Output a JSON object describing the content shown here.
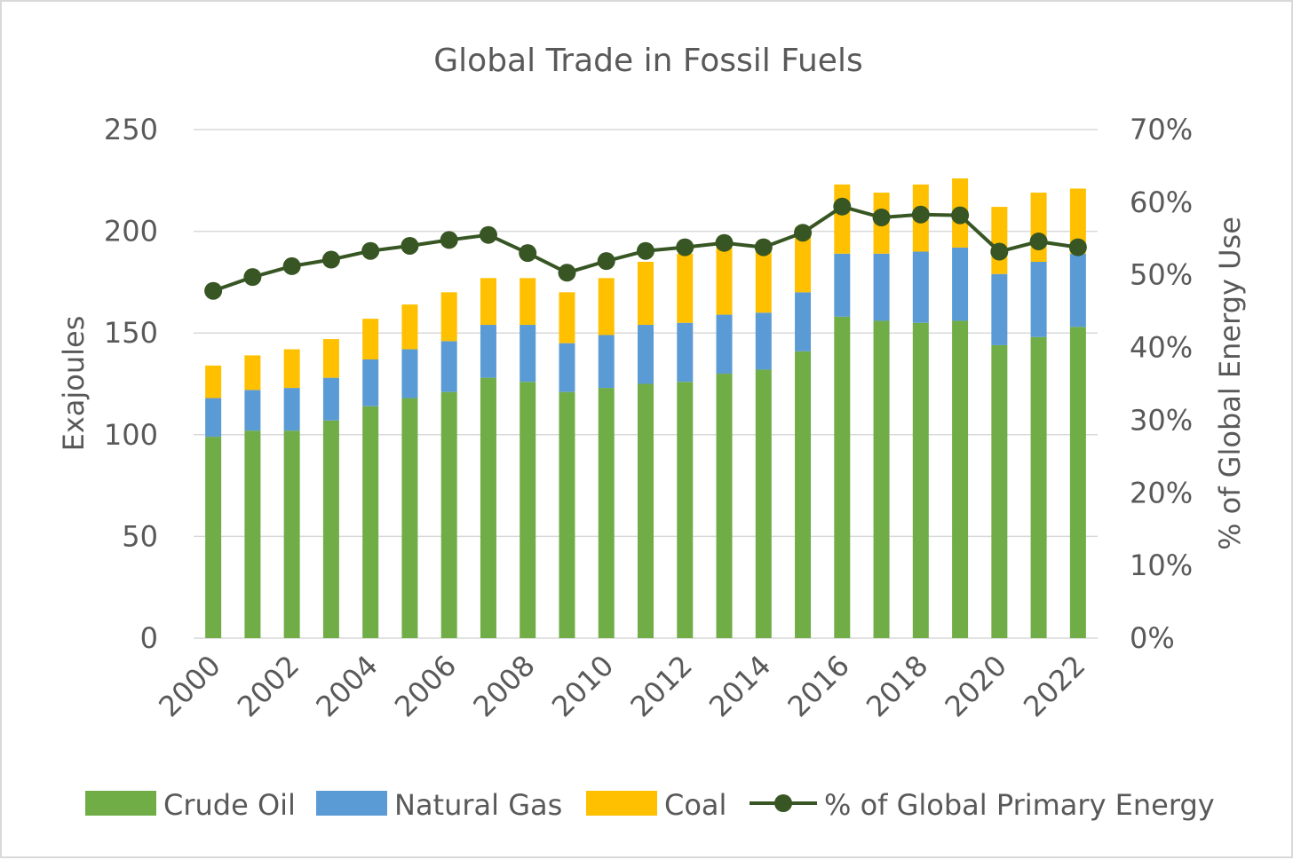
{
  "chart_data": {
    "type": "bar",
    "stacked": true,
    "title": "Global Trade in Fossil Fuels",
    "ylabel": "Exajoules",
    "y2label": "% of Global Energy Use",
    "ylim": [
      0,
      250
    ],
    "yticks": [
      0,
      50,
      100,
      150,
      200,
      250
    ],
    "y2lim": [
      0,
      0.7
    ],
    "y2ticks": [
      "0%",
      "10%",
      "20%",
      "30%",
      "40%",
      "50%",
      "60%",
      "70%"
    ],
    "categories": [
      "2000",
      "2001",
      "2002",
      "2003",
      "2004",
      "2005",
      "2006",
      "2007",
      "2008",
      "2009",
      "2010",
      "2011",
      "2012",
      "2013",
      "2014",
      "2015",
      "2016",
      "2017",
      "2018",
      "2019",
      "2020",
      "2021",
      "2022"
    ],
    "x_tick_labels": [
      "2000",
      "2002",
      "2004",
      "2006",
      "2008",
      "2010",
      "2012",
      "2014",
      "2016",
      "2018",
      "2020",
      "2022"
    ],
    "series": [
      {
        "name": "Crude Oil",
        "type": "bar",
        "color": "#70ad47",
        "values": [
          99,
          102,
          102,
          107,
          114,
          118,
          121,
          128,
          126,
          121,
          123,
          125,
          126,
          130,
          132,
          141,
          158,
          156,
          155,
          156,
          144,
          148,
          153
        ]
      },
      {
        "name": "Natural Gas",
        "type": "bar",
        "color": "#5b9bd5",
        "values": [
          19,
          20,
          21,
          21,
          23,
          24,
          25,
          26,
          28,
          24,
          26,
          29,
          29,
          29,
          28,
          29,
          31,
          33,
          35,
          36,
          35,
          37,
          36
        ]
      },
      {
        "name": "Coal",
        "type": "bar",
        "color": "#ffc000",
        "values": [
          16,
          17,
          19,
          19,
          20,
          22,
          24,
          23,
          23,
          25,
          28,
          31,
          34,
          34,
          33,
          32,
          34,
          30,
          33,
          34,
          33,
          34,
          32
        ]
      },
      {
        "name": "% of Global Primary Energy",
        "type": "line",
        "axis": "secondary",
        "color": "#375623",
        "values": [
          0.478,
          0.497,
          0.512,
          0.521,
          0.533,
          0.54,
          0.548,
          0.555,
          0.53,
          0.503,
          0.519,
          0.533,
          0.538,
          0.544,
          0.538,
          0.558,
          0.594,
          0.579,
          0.583,
          0.582,
          0.532,
          0.546,
          0.538
        ]
      }
    ],
    "legend_position": "bottom"
  }
}
